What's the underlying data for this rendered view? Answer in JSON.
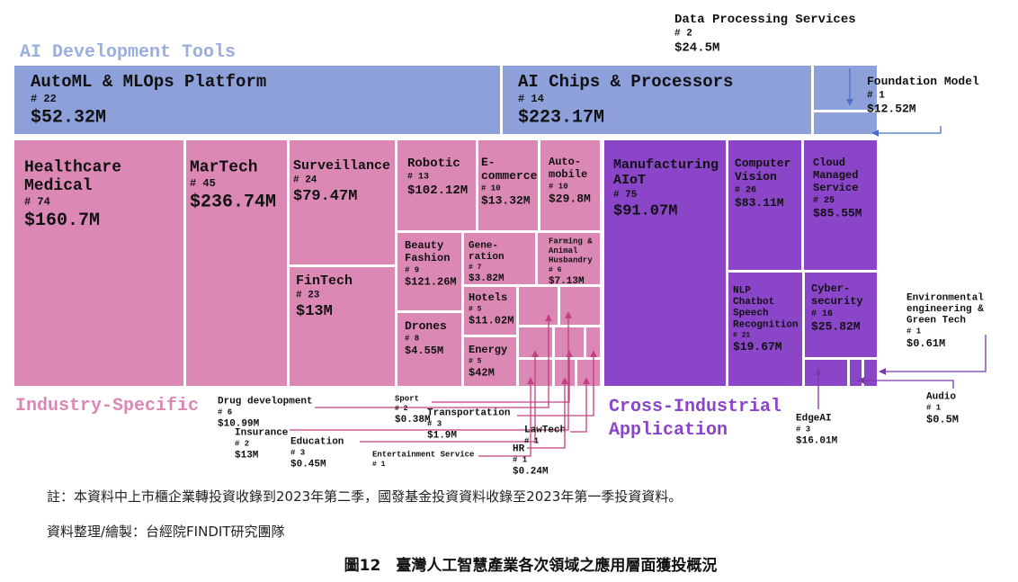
{
  "groups": [
    {
      "label": [
        "AI Development Tools"
      ],
      "items": [
        {
          "name": [
            "AutoML & MLOps Platform"
          ],
          "count": "# 22",
          "amount": "$52.32M"
        },
        {
          "name": [
            "AI Chips & Processors"
          ],
          "count": "# 14",
          "amount": "$223.17M"
        },
        {
          "name": [
            "Data Processing Services"
          ],
          "count": "# 2",
          "amount": "$24.5M"
        },
        {
          "name": [
            "Foundation Model"
          ],
          "count": "# 1",
          "amount": "$12.52M"
        }
      ]
    },
    {
      "label": [
        "Industry-Specific"
      ],
      "items": [
        {
          "name": [
            "Healthcare",
            "Medical"
          ],
          "count": "# 74",
          "amount": "$160.7M"
        },
        {
          "name": [
            "MarTech"
          ],
          "count": "# 45",
          "amount": "$236.74M"
        },
        {
          "name": [
            "Surveillance"
          ],
          "count": "# 24",
          "amount": "$79.47M"
        },
        {
          "name": [
            "FinTech"
          ],
          "count": "# 23",
          "amount": "$13M"
        },
        {
          "name": [
            "Robotic"
          ],
          "count": "# 13",
          "amount": "$102.12M"
        },
        {
          "name": [
            "E-",
            "commerce"
          ],
          "count": "# 10",
          "amount": "$13.32M"
        },
        {
          "name": [
            "Auto-",
            "mobile"
          ],
          "count": "# 10",
          "amount": "$29.8M"
        },
        {
          "name": [
            "Beauty",
            "Fashion"
          ],
          "count": "# 9",
          "amount": "$121.26M"
        },
        {
          "name": [
            "Gene-",
            "ration"
          ],
          "count": "# 7",
          "amount": "$3.82M"
        },
        {
          "name": [
            "Farming &",
            "Animal",
            "Husbandry"
          ],
          "count": "# 6",
          "amount": "$7.13M"
        },
        {
          "name": [
            "Drones"
          ],
          "count": "# 8",
          "amount": "$4.55M"
        },
        {
          "name": [
            "Hotels"
          ],
          "count": "# 5",
          "amount": "$11.02M"
        },
        {
          "name": [
            "Energy"
          ],
          "count": "# 5",
          "amount": "$42M"
        },
        {
          "name": [
            "Drug development"
          ],
          "count": "# 6",
          "amount": "$10.99M"
        },
        {
          "name": [
            "Insurance"
          ],
          "count": "# 2",
          "amount": "$13M"
        },
        {
          "name": [
            "Education"
          ],
          "count": "# 3",
          "amount": "$0.45M"
        },
        {
          "name": [
            "Sport"
          ],
          "count": "# 2",
          "amount": "$0.38M"
        },
        {
          "name": [
            "Transportation"
          ],
          "count": "# 3",
          "amount": "$1.9M"
        },
        {
          "name": [
            "LawTech"
          ],
          "count": "# 1"
        },
        {
          "name": [
            "Entertainment Service"
          ],
          "count": "# 1"
        },
        {
          "name": [
            "HR"
          ],
          "count": "# 1",
          "amount": "$0.24M"
        }
      ]
    },
    {
      "label": [
        "Cross-Industrial",
        "Application"
      ],
      "items": [
        {
          "name": [
            "Manufacturing",
            "AIoT"
          ],
          "count": "# 75",
          "amount": "$91.07M"
        },
        {
          "name": [
            "Computer",
            "Vision"
          ],
          "count": "# 26",
          "amount": "$83.11M"
        },
        {
          "name": [
            "Cloud",
            "Managed",
            "Service"
          ],
          "count": "# 25",
          "amount": "$85.55M"
        },
        {
          "name": [
            "NLP",
            "Chatbot",
            "Speech",
            "Recognition"
          ],
          "count": "# 21",
          "amount": "$19.67M"
        },
        {
          "name": [
            "Cyber-",
            "security"
          ],
          "count": "# 16",
          "amount": "$25.82M"
        },
        {
          "name": [
            "EdgeAI"
          ],
          "count": "# 3",
          "amount": "$16.01M"
        },
        {
          "name": [
            "Environmental",
            "engineering &",
            "Green Tech"
          ],
          "count": "# 1",
          "amount": "$0.61M"
        },
        {
          "name": [
            "Audio"
          ],
          "count": "# 1",
          "amount": "$0.5M"
        }
      ]
    }
  ],
  "notes": [
    "註：本資料中上市櫃企業轉投資收錄到2023年第二季，國發基金投資資料收錄至2023年第一季投資資料。",
    "資料整理/繪製：台經院FINDIT研究團隊"
  ],
  "caption": "圖12　臺灣人工智慧產業各次領域之應用層面獲投概況"
}
